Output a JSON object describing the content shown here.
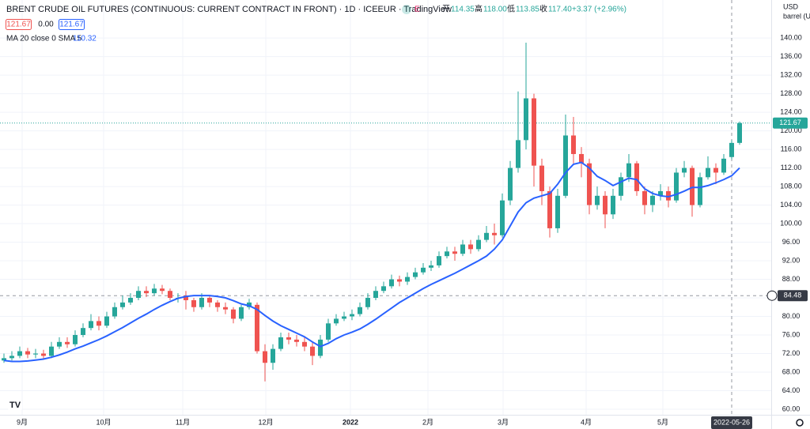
{
  "header": {
    "title": "BRENT CRUDE OIL FUTURES (CONTINUOUS: CURRENT CONTRACT IN FRONT) · 1D · ICEEUR · TradingView",
    "ohlc": [
      {
        "label": "开",
        "value": "114.35"
      },
      {
        "label": "高",
        "value": "118.00"
      },
      {
        "label": "低",
        "value": "113.85"
      },
      {
        "label": "收",
        "value": "117.40"
      }
    ],
    "change": "+3.37 (+2.96%)",
    "badges": [
      "121.67",
      "0.00",
      "121.67"
    ]
  },
  "chart_data": {
    "type": "candlestick",
    "up_color": "#26a69a",
    "down_color": "#ef5350",
    "open": [
      70.5,
      71,
      71.5,
      72.5,
      71.8,
      72,
      71.5,
      73.5,
      74.5,
      74,
      76,
      77.5,
      79,
      78,
      80,
      82,
      83,
      84,
      85.5,
      85,
      86,
      85.5,
      84,
      84.5,
      83.5,
      82,
      84,
      83,
      82,
      81.5,
      79.5,
      82,
      82.5,
      72.5,
      70,
      73,
      75.5,
      75,
      74.5,
      73.5,
      71.5,
      75,
      78.5,
      79.5,
      80,
      80.5,
      82,
      84,
      85.5,
      86.5,
      88,
      87.5,
      88.5,
      89.5,
      90.5,
      91,
      93,
      94,
      93.5,
      95.5,
      94.5,
      96.5,
      98,
      97.5,
      105,
      112,
      118,
      127,
      112.5,
      107,
      99,
      106,
      119,
      115,
      113,
      104,
      106,
      102,
      106,
      110,
      113,
      107,
      104,
      106,
      107,
      105,
      111,
      112,
      104,
      110,
      112,
      111,
      114.35,
      117.4
    ],
    "high": [
      72,
      72.5,
      73.5,
      73.2,
      73,
      72.8,
      74.5,
      75.5,
      75.5,
      77,
      78.5,
      80.5,
      80,
      81,
      83,
      84.5,
      85,
      86.5,
      86.5,
      87,
      86.8,
      86,
      85,
      85.5,
      84,
      85,
      84.5,
      83.5,
      83,
      82,
      82.5,
      83.8,
      83,
      74,
      74,
      76.5,
      76.5,
      76,
      75.5,
      74.5,
      76,
      79.5,
      80.5,
      81,
      81.5,
      83,
      85,
      86.5,
      87.5,
      89,
      88.8,
      89.5,
      90.5,
      91.5,
      92,
      94,
      95,
      95,
      96.5,
      96.5,
      97.5,
      99.5,
      100,
      106.5,
      113.5,
      128.5,
      139,
      128,
      114,
      108,
      107.5,
      123.5,
      123,
      116.5,
      114,
      108,
      107,
      107.5,
      111,
      115,
      113.5,
      108,
      107,
      108.5,
      108,
      112,
      113.5,
      112.5,
      111,
      114.5,
      113,
      115,
      118,
      122
    ],
    "low": [
      70,
      70.5,
      71,
      71,
      71,
      70.8,
      71,
      73,
      73.2,
      73.5,
      75.5,
      77,
      77,
      77.5,
      79.5,
      81.5,
      82.5,
      83.5,
      84.2,
      84.5,
      84.8,
      83.5,
      83,
      81.5,
      81,
      81.5,
      82,
      81,
      80.5,
      78.5,
      79,
      81.5,
      72,
      66,
      68.5,
      72.5,
      74,
      73.5,
      72.5,
      69.5,
      71,
      74.5,
      78,
      79,
      79.2,
      80,
      81.5,
      83.5,
      85,
      86,
      86.5,
      86.8,
      88,
      89,
      89.8,
      90.5,
      92.5,
      92,
      93,
      93.5,
      94,
      96,
      95.5,
      97,
      104,
      111,
      116,
      108,
      104,
      97,
      98,
      105.5,
      113,
      110,
      102,
      103,
      99,
      101,
      105,
      109,
      106,
      102,
      102.5,
      105,
      103.5,
      104.5,
      110,
      101.5,
      103.5,
      109.5,
      108.5,
      110.5,
      113.85,
      117
    ],
    "close": [
      71,
      71.5,
      72.5,
      71.8,
      72,
      71.5,
      73.5,
      74.5,
      74,
      76,
      77.5,
      79,
      78,
      80,
      82,
      83,
      84,
      85.5,
      85,
      86,
      85.5,
      84,
      84,
      83.5,
      82,
      84,
      83,
      82,
      81.5,
      79.5,
      82,
      83,
      72.5,
      70,
      73,
      75.5,
      75,
      74.5,
      73.5,
      71.5,
      75,
      78.5,
      79.5,
      80,
      80.5,
      82,
      84,
      85.5,
      86.5,
      88,
      87.5,
      88.5,
      89.5,
      90.5,
      91,
      93,
      94,
      93.5,
      95.5,
      94.5,
      96.5,
      98,
      97.5,
      105,
      112,
      118,
      127,
      112.5,
      107,
      99,
      106,
      119,
      115,
      113,
      104,
      106,
      102,
      106,
      110,
      113,
      107,
      104,
      106,
      107,
      105,
      111,
      112,
      104,
      110,
      112,
      111,
      114,
      117.4,
      121.67
    ],
    "ma": {
      "name": "MA 20 close 0 SMA 5",
      "value_label": "110.32",
      "color": "#2962ff",
      "values": [
        70.5,
        70.3,
        70.3,
        70.4,
        70.6,
        70.8,
        71.2,
        71.7,
        72.3,
        73,
        73.6,
        74.3,
        75,
        75.8,
        76.7,
        77.6,
        78.6,
        79.6,
        80.5,
        81.5,
        82.4,
        83.2,
        83.9,
        84.3,
        84.5,
        84.5,
        84.5,
        84.3,
        84,
        83.4,
        82.7,
        82.3,
        81.5,
        80.2,
        79,
        78,
        77.2,
        76.4,
        75.6,
        74.5,
        73.5,
        74.2,
        75.2,
        76,
        76.6,
        77.3,
        78.3,
        79.4,
        80.6,
        81.8,
        83,
        84,
        85,
        86,
        86.9,
        87.7,
        88.5,
        89.3,
        90.2,
        91.1,
        92,
        93,
        94.5,
        96.5,
        99.5,
        102.5,
        104.5,
        105.5,
        106,
        106.5,
        108.5,
        111,
        112.8,
        113.2,
        112,
        110.2,
        109.3,
        108.2,
        109,
        109.8,
        109.5,
        107.5,
        106.5,
        106,
        105.8,
        106.3,
        107,
        107.8,
        107.8,
        108.2,
        108.8,
        109.5,
        110.32,
        112
      ]
    },
    "xlim": [
      -0.5,
      97
    ],
    "xticks": [
      {
        "value": 2.3,
        "label": "9月"
      },
      {
        "value": 12.6,
        "label": "10月"
      },
      {
        "value": 22.6,
        "label": "11月"
      },
      {
        "value": 33.1,
        "label": "12月"
      },
      {
        "value": 43.8,
        "label": "2022"
      },
      {
        "value": 53.6,
        "label": "2月"
      },
      {
        "value": 63.1,
        "label": "3月"
      },
      {
        "value": 73.6,
        "label": "4月"
      },
      {
        "value": 83.3,
        "label": "5月"
      }
    ],
    "ylim": [
      58.8,
      148.2
    ],
    "yticks": [
      {
        "value": 60,
        "label": "60.00"
      },
      {
        "value": 64,
        "label": "64.00"
      },
      {
        "value": 68,
        "label": "68.00"
      },
      {
        "value": 72,
        "label": "72.00"
      },
      {
        "value": 76,
        "label": "76.00"
      },
      {
        "value": 80,
        "label": "80.00"
      },
      {
        "value": 84,
        "label": "84.00"
      },
      {
        "value": 88,
        "label": "88.00"
      },
      {
        "value": 92,
        "label": "92.00"
      },
      {
        "value": 96,
        "label": "96.00"
      },
      {
        "value": 100,
        "label": "100.00"
      },
      {
        "value": 104,
        "label": "104.00"
      },
      {
        "value": 108,
        "label": "108.00"
      },
      {
        "value": 112,
        "label": "112.00"
      },
      {
        "value": 116,
        "label": "116.00"
      },
      {
        "value": 120,
        "label": "120.00"
      },
      {
        "value": 124,
        "label": "124.00"
      },
      {
        "value": 128,
        "label": "128.00"
      },
      {
        "value": 132,
        "label": "132.00"
      },
      {
        "value": 136,
        "label": "136.00"
      },
      {
        "value": 140,
        "label": "140.00"
      }
    ],
    "grid": true,
    "y_unit": [
      "USD",
      "barrel (US"
    ],
    "last_price": {
      "value": 121.67,
      "label": "121.67"
    },
    "crosshair_price": {
      "value": 84.48,
      "label": "84.48"
    },
    "crosshair_date": {
      "value": 92,
      "label": "2022-05-26"
    }
  }
}
